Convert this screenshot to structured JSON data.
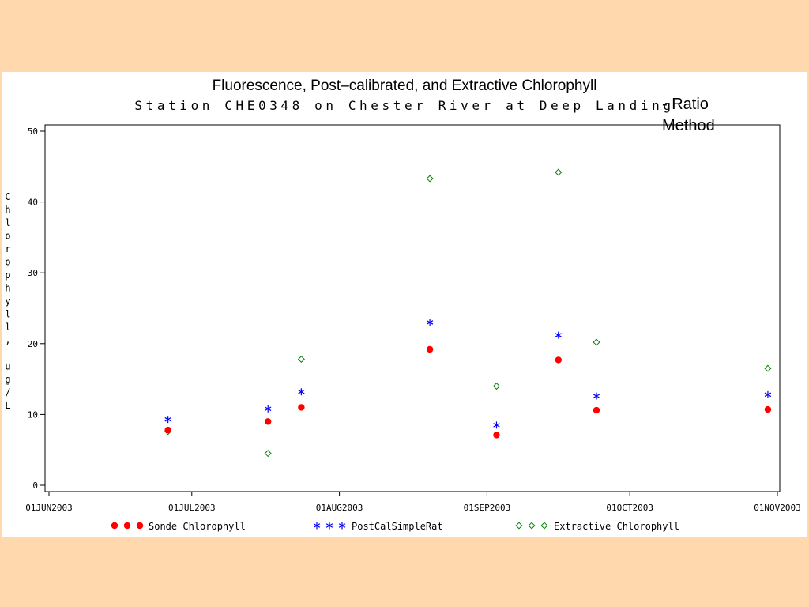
{
  "slide": {
    "background": "#ffd8ad",
    "panel_background": "#ffffff",
    "note": "- Ratio\nMethod"
  },
  "chart_data": {
    "type": "scatter",
    "title": "Fluorescence, Post–calibrated, and Extractive Chlorophyll",
    "subtitle": "Station CHE0348 on Chester River at Deep Landing",
    "xlabel": "",
    "ylabel": "Chlorophyll, ug/L",
    "ylim": [
      0,
      50
    ],
    "y_ticks": [
      0,
      10,
      20,
      30,
      40,
      50
    ],
    "xlim": [
      "2003-06-01",
      "2003-11-01"
    ],
    "x_ticks": [
      {
        "date": "2003-06-01",
        "label": "01JUN2003"
      },
      {
        "date": "2003-07-01",
        "label": "01JUL2003"
      },
      {
        "date": "2003-08-01",
        "label": "01AUG2003"
      },
      {
        "date": "2003-09-01",
        "label": "01SEP2003"
      },
      {
        "date": "2003-10-01",
        "label": "01OCT2003"
      },
      {
        "date": "2003-11-01",
        "label": "01NOV2003"
      }
    ],
    "grid": false,
    "legend_position": "bottom",
    "series": [
      {
        "name": "Sonde Chlorophyll",
        "marker": "dot",
        "color": "#ff0000",
        "points": [
          {
            "x": "2003-06-26",
            "y": 7.8
          },
          {
            "x": "2003-07-17",
            "y": 9.0
          },
          {
            "x": "2003-07-24",
            "y": 11.0
          },
          {
            "x": "2003-08-20",
            "y": 19.2
          },
          {
            "x": "2003-09-03",
            "y": 7.1
          },
          {
            "x": "2003-09-16",
            "y": 17.7
          },
          {
            "x": "2003-09-24",
            "y": 10.6
          },
          {
            "x": "2003-10-30",
            "y": 10.7
          }
        ]
      },
      {
        "name": "PostCalSimpleRat",
        "marker": "star",
        "color": "#0000ff",
        "points": [
          {
            "x": "2003-06-26",
            "y": 9.3
          },
          {
            "x": "2003-07-17",
            "y": 10.8
          },
          {
            "x": "2003-07-24",
            "y": 13.2
          },
          {
            "x": "2003-08-20",
            "y": 23.0
          },
          {
            "x": "2003-09-03",
            "y": 8.5
          },
          {
            "x": "2003-09-16",
            "y": 21.2
          },
          {
            "x": "2003-09-24",
            "y": 12.6
          },
          {
            "x": "2003-10-30",
            "y": 12.8
          }
        ]
      },
      {
        "name": "Extractive Chlorophyll",
        "marker": "diamond",
        "color": "#008000",
        "points": [
          {
            "x": "2003-06-26",
            "y": 7.6
          },
          {
            "x": "2003-07-17",
            "y": 4.5
          },
          {
            "x": "2003-07-24",
            "y": 17.8
          },
          {
            "x": "2003-08-20",
            "y": 43.3
          },
          {
            "x": "2003-09-03",
            "y": 14.0
          },
          {
            "x": "2003-09-16",
            "y": 44.2
          },
          {
            "x": "2003-09-24",
            "y": 20.2
          },
          {
            "x": "2003-10-30",
            "y": 16.5
          }
        ]
      }
    ]
  }
}
